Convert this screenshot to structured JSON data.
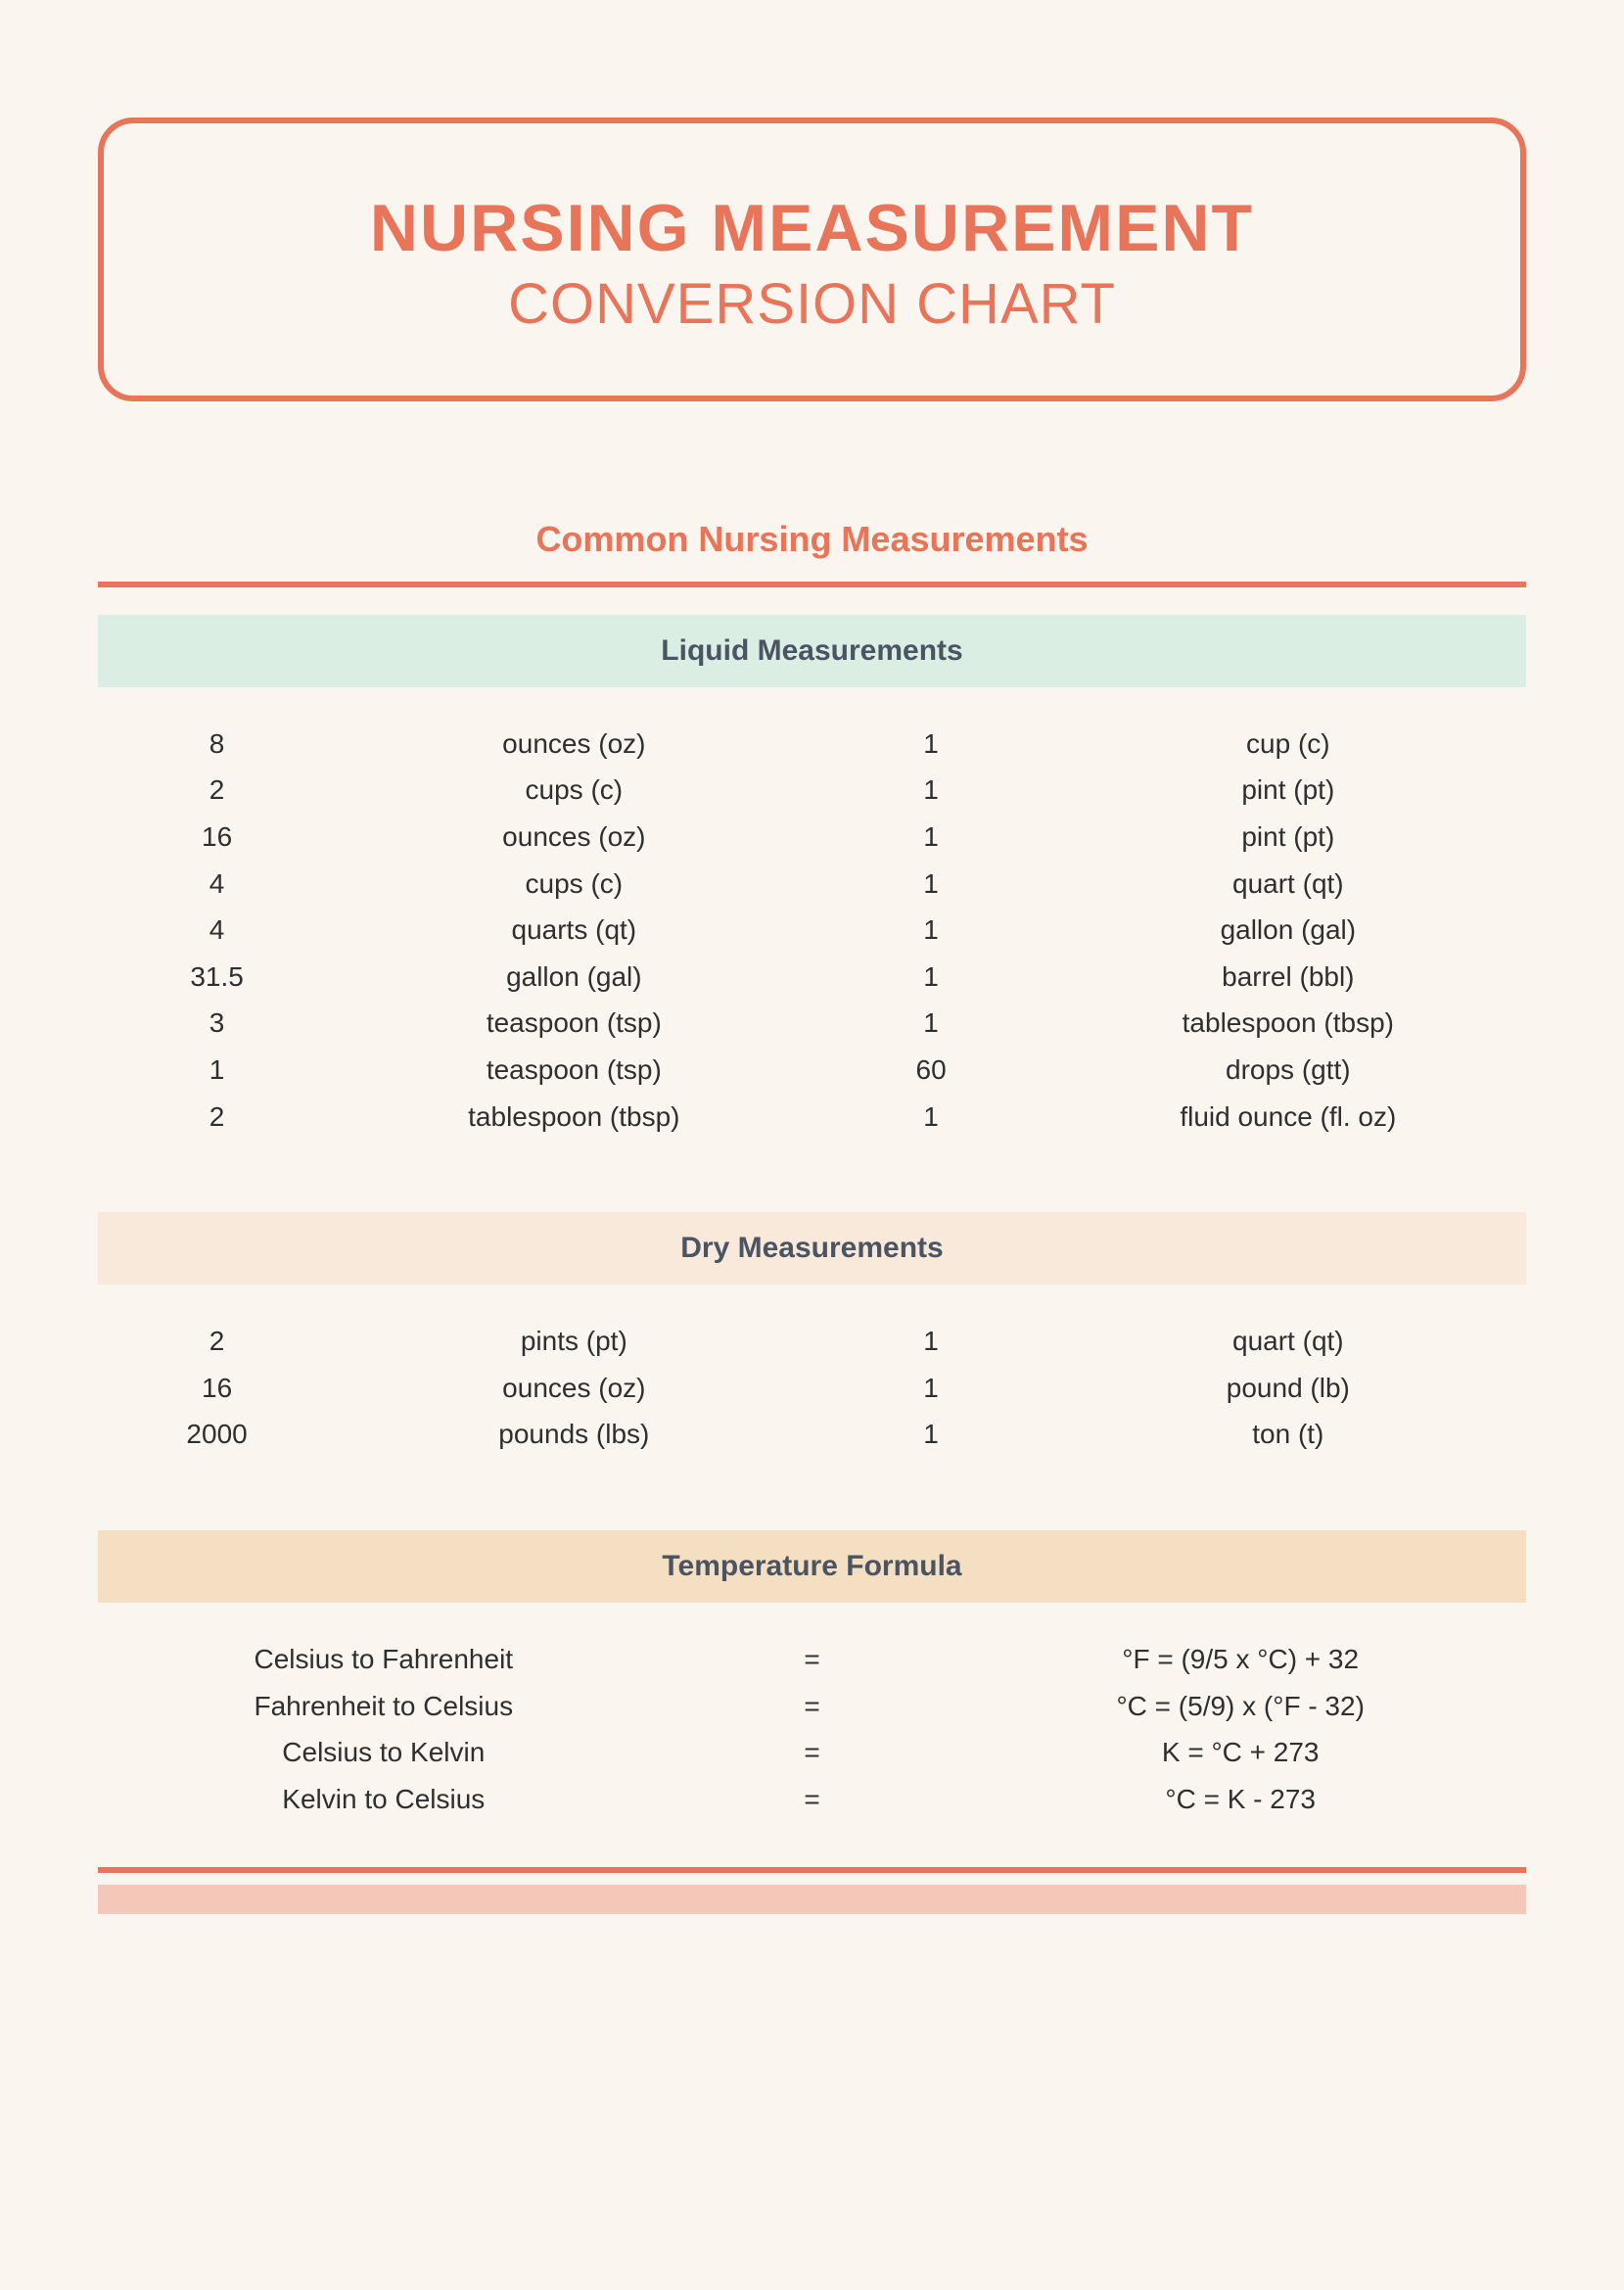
{
  "colors": {
    "page_bg": "#faf5ef",
    "accent": "#e8745a",
    "text": "#2f2f2f",
    "header_text": "#4a5463",
    "liquid_hdr_bg": "#dbeee3",
    "dry_hdr_bg": "#f8e9db",
    "temp_hdr_bg": "#f4dfc3",
    "bottom_bar_bg": "#f3c8b8"
  },
  "title": {
    "line1": "NURSING MEASUREMENT",
    "line2": "CONVERSION CHART",
    "border_width": 6,
    "border_radius": 36,
    "line1_fontsize": 68,
    "line2_fontsize": 58
  },
  "subheading": "Common Nursing Measurements",
  "sections": {
    "liquid": {
      "title": "Liquid Measurements",
      "rows": [
        {
          "qty_from": "8",
          "unit_from": "ounces (oz)",
          "qty_to": "1",
          "unit_to": "cup (c)"
        },
        {
          "qty_from": "2",
          "unit_from": "cups (c)",
          "qty_to": "1",
          "unit_to": "pint (pt)"
        },
        {
          "qty_from": "16",
          "unit_from": "ounces (oz)",
          "qty_to": "1",
          "unit_to": "pint (pt)"
        },
        {
          "qty_from": "4",
          "unit_from": "cups (c)",
          "qty_to": "1",
          "unit_to": "quart (qt)"
        },
        {
          "qty_from": "4",
          "unit_from": "quarts (qt)",
          "qty_to": "1",
          "unit_to": "gallon (gal)"
        },
        {
          "qty_from": "31.5",
          "unit_from": "gallon (gal)",
          "qty_to": "1",
          "unit_to": "barrel (bbl)"
        },
        {
          "qty_from": "3",
          "unit_from": "teaspoon (tsp)",
          "qty_to": "1",
          "unit_to": "tablespoon (tbsp)"
        },
        {
          "qty_from": "1",
          "unit_from": "teaspoon (tsp)",
          "qty_to": "60",
          "unit_to": "drops (gtt)"
        },
        {
          "qty_from": "2",
          "unit_from": "tablespoon (tbsp)",
          "qty_to": "1",
          "unit_to": "fluid ounce (fl. oz)"
        }
      ]
    },
    "dry": {
      "title": "Dry Measurements",
      "rows": [
        {
          "qty_from": "2",
          "unit_from": "pints (pt)",
          "qty_to": "1",
          "unit_to": "quart (qt)"
        },
        {
          "qty_from": "16",
          "unit_from": "ounces (oz)",
          "qty_to": "1",
          "unit_to": "pound (lb)"
        },
        {
          "qty_from": "2000",
          "unit_from": "pounds (lbs)",
          "qty_to": "1",
          "unit_to": "ton (t)"
        }
      ]
    },
    "temperature": {
      "title": "Temperature Formula",
      "rows": [
        {
          "name": "Celsius to Fahrenheit",
          "eq": "=",
          "formula": "°F = (9/5 x °C) + 32"
        },
        {
          "name": "Fahrenheit to Celsius",
          "eq": "=",
          "formula": "°C = (5/9) x (°F - 32)"
        },
        {
          "name": "Celsius to Kelvin",
          "eq": "=",
          "formula": "K = °C + 273"
        },
        {
          "name": "Kelvin to Celsius",
          "eq": "=",
          "formula": "°C = K - 273"
        }
      ]
    }
  },
  "typography": {
    "subheading_fontsize": 36,
    "section_header_fontsize": 30,
    "row_fontsize": 28,
    "row_line_height": 1.7
  }
}
